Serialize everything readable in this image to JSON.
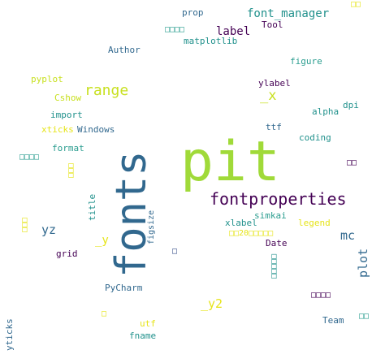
{
  "palette": {
    "background": "#ffffff",
    "dark_purple": "#440154",
    "slate_blue": "#3b528b",
    "steel_blue": "#31688e",
    "teal": "#21918c",
    "green_teal": "#2a9d8f",
    "green": "#5ec962",
    "light_green": "#a0da39",
    "yellow_green": "#c8e020",
    "yellow": "#e6e419"
  },
  "words": [
    {
      "text": "pit"
    },
    {
      "text": "fonts"
    },
    {
      "text": "fontproperties"
    },
    {
      "text": "range"
    },
    {
      "text": "font_manager"
    },
    {
      "text": "_x"
    },
    {
      "text": "label"
    },
    {
      "text": "prop"
    },
    {
      "text": "Tool"
    },
    {
      "text": "matplotlib"
    },
    {
      "text": "Author"
    },
    {
      "text": "figure"
    },
    {
      "text": "pyplot"
    },
    {
      "text": "ylabel"
    },
    {
      "text": "Cshow"
    },
    {
      "text": "import"
    },
    {
      "text": "alpha"
    },
    {
      "text": "dpi"
    },
    {
      "text": "xticks"
    },
    {
      "text": "Windows"
    },
    {
      "text": "ttf"
    },
    {
      "text": "coding"
    },
    {
      "text": "format"
    },
    {
      "text": "title"
    },
    {
      "text": "figsize"
    },
    {
      "text": "simkai"
    },
    {
      "text": "xlabel"
    },
    {
      "text": "legend"
    },
    {
      "text": "yz"
    },
    {
      "text": "mc"
    },
    {
      "text": "_y"
    },
    {
      "text": "grid"
    },
    {
      "text": "Date"
    },
    {
      "text": "plot"
    },
    {
      "text": "PyCharm"
    },
    {
      "text": "_y2"
    },
    {
      "text": "Team"
    },
    {
      "text": "utf"
    },
    {
      "text": "fname"
    },
    {
      "text": "yticks"
    },
    {
      "text": "□□20□□□□□"
    },
    {
      "text": "□□"
    },
    {
      "text": "□□□□"
    },
    {
      "text": "□□□□"
    },
    {
      "text": "□□□"
    },
    {
      "text": "□□"
    },
    {
      "text": "□□□"
    },
    {
      "text": "□□□□□"
    },
    {
      "text": "□"
    },
    {
      "text": "□□□□"
    },
    {
      "text": "□"
    },
    {
      "text": "□□"
    }
  ]
}
